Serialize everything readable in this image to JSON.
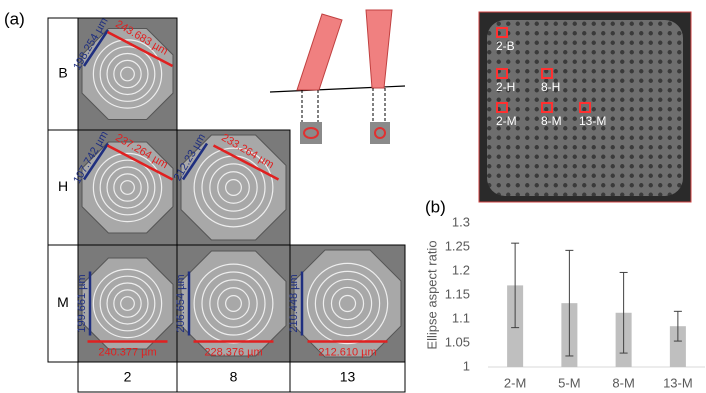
{
  "panel_a": {
    "label": "(a)",
    "rows": [
      "B",
      "H",
      "M"
    ],
    "columns": [
      "2",
      "8",
      "13"
    ],
    "cells": [
      {
        "short": "198.254 µm",
        "long": "243.683 µm"
      },
      {
        "short": "107.742 µm",
        "long": "237.264 µm"
      },
      {
        "short": "212.23 µm",
        "long": "233.264 µm"
      },
      {
        "short": "199.661 µm",
        "long": "240.377 µm"
      },
      {
        "short": "206.654 µm",
        "long": "228.376 µm"
      },
      {
        "short": "210.448 µm",
        "long": "212.610 µm"
      }
    ]
  },
  "array_labels": [
    "2-B",
    "2-H",
    "8-H",
    "2-M",
    "8-M",
    "13-M"
  ],
  "chart_data": {
    "type": "bar",
    "panel_label": "(b)",
    "y_label": "Ellipse aspect ratio",
    "categories": [
      "2-M",
      "5-M",
      "8-M",
      "13-M"
    ],
    "values": [
      1.17,
      1.133,
      1.113,
      1.085
    ],
    "errors": [
      0.088,
      0.11,
      0.084,
      0.031
    ],
    "color": "#bfbfbf",
    "error_color": "#404040",
    "ylim": [
      1,
      1.3
    ],
    "yticks": [
      1,
      1.05,
      1.1,
      1.15,
      1.2,
      1.25,
      1.3
    ],
    "grid": false
  }
}
